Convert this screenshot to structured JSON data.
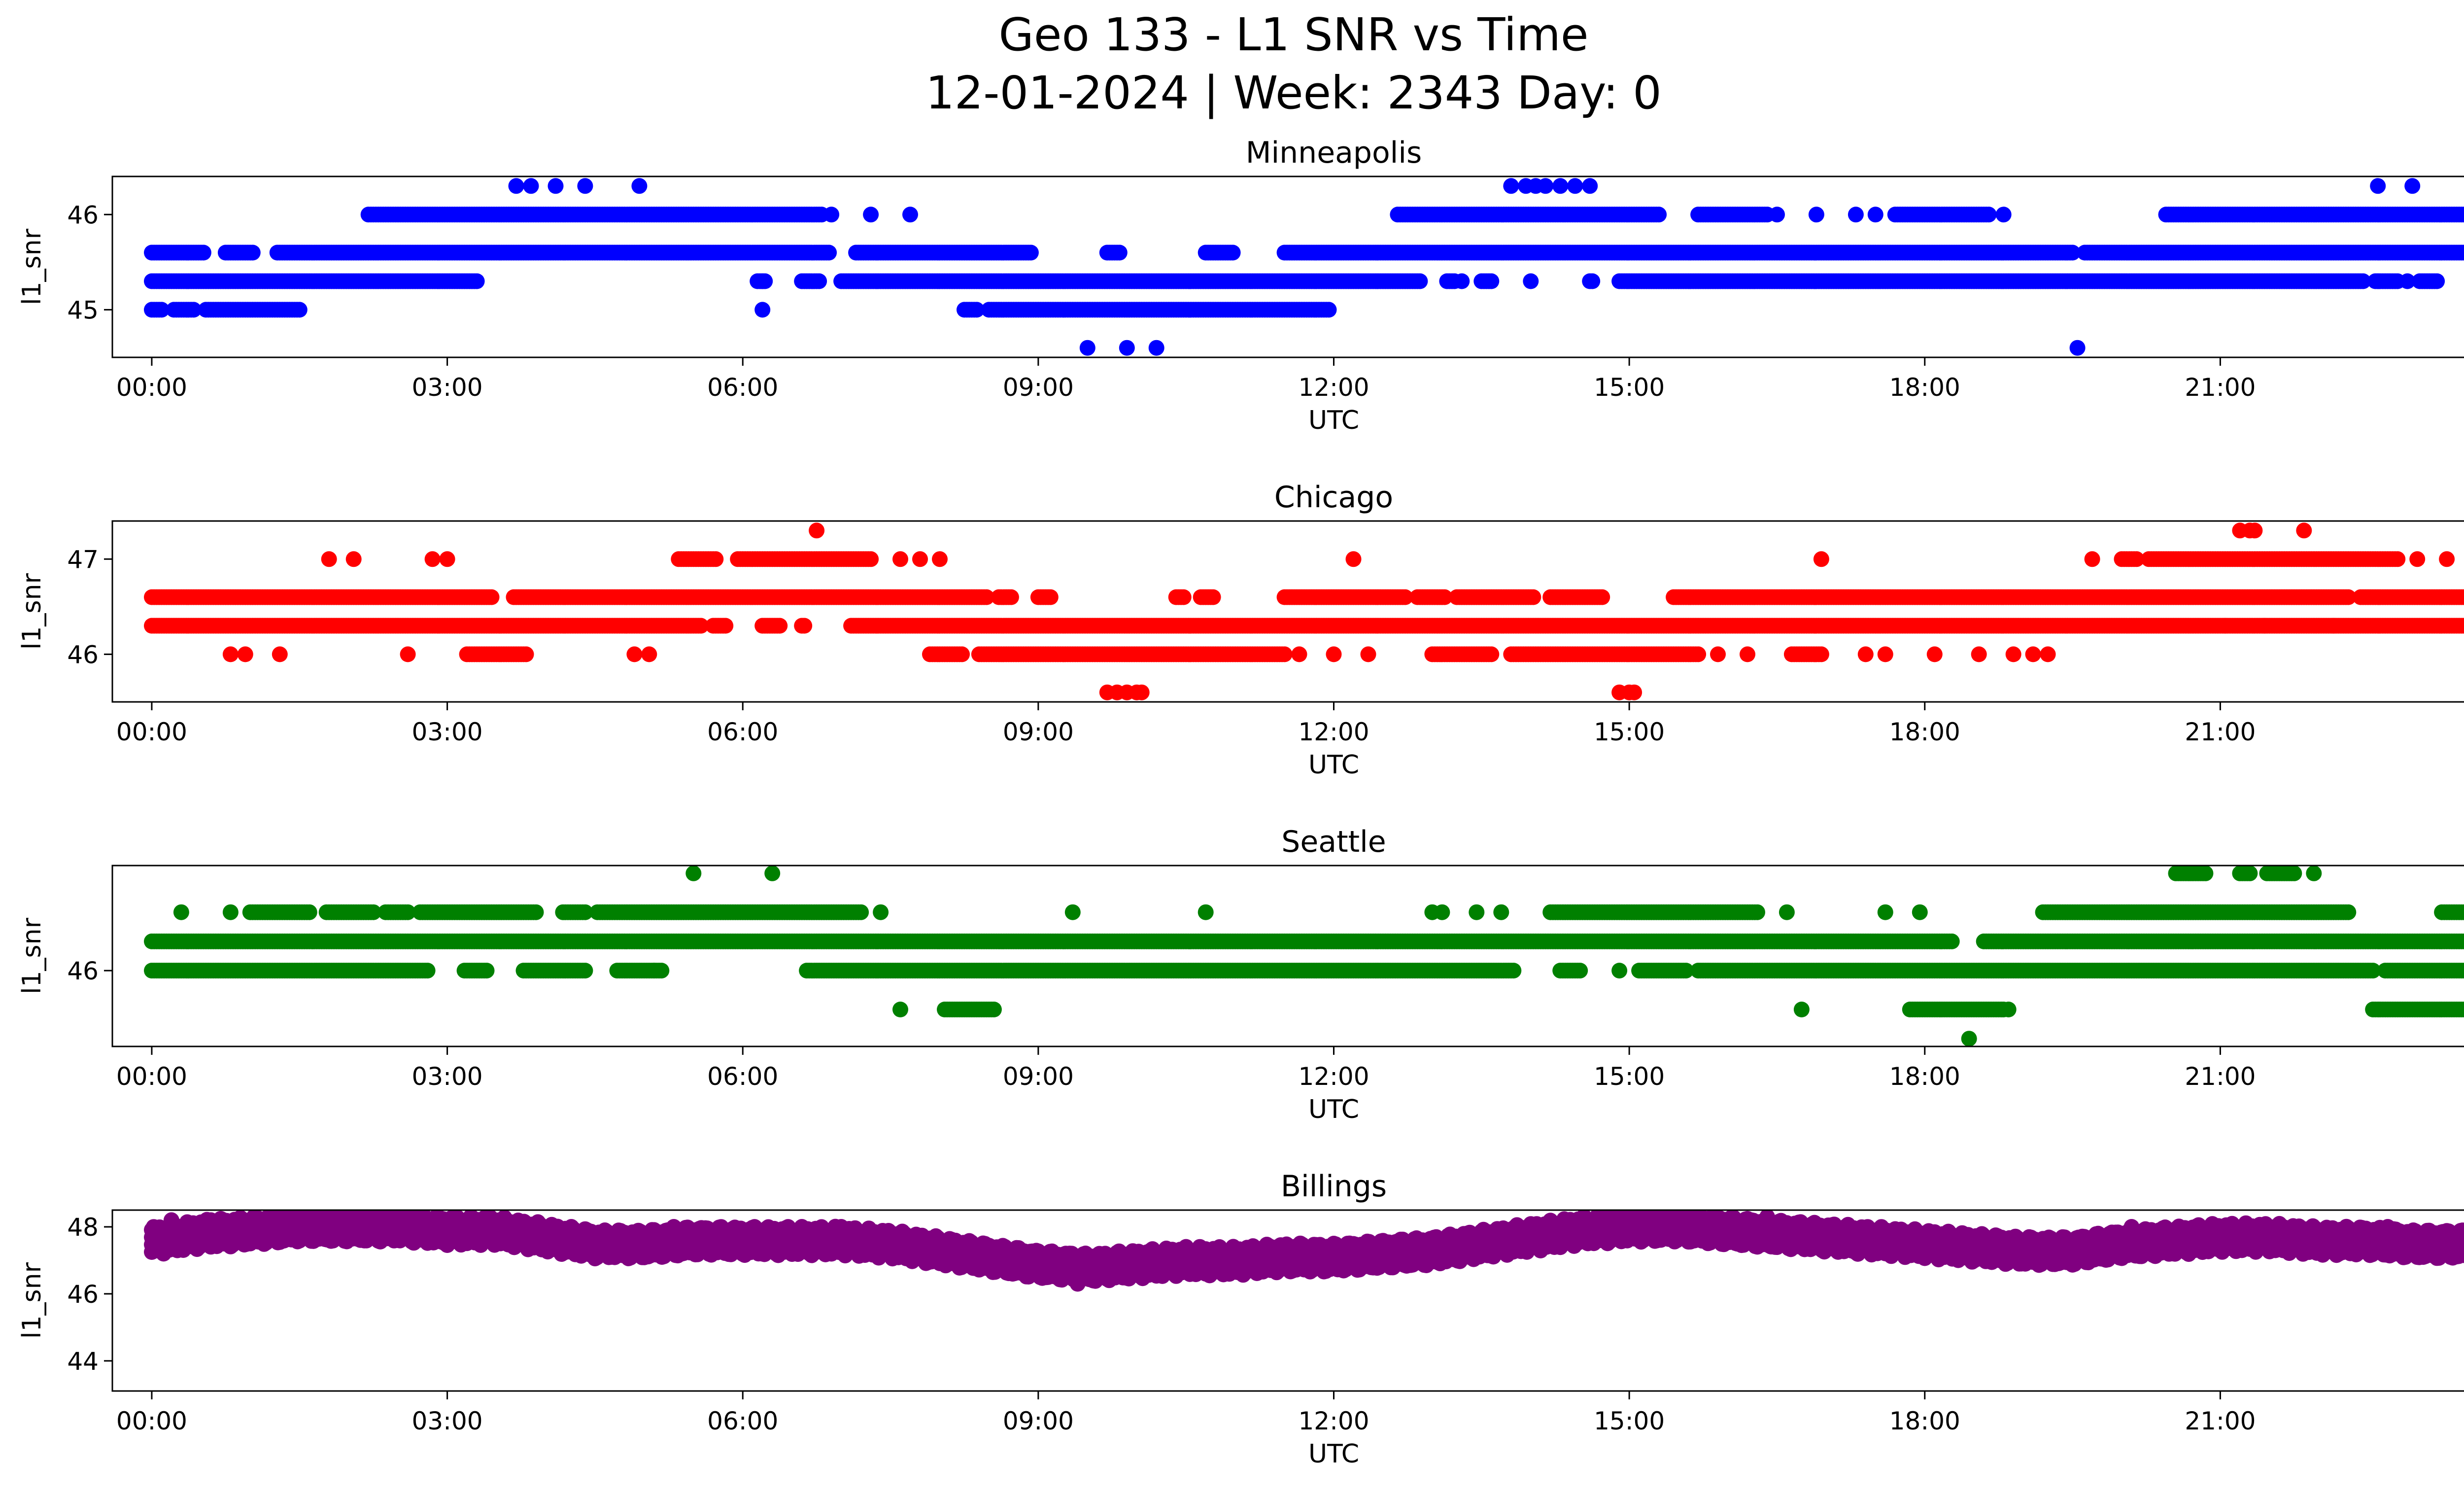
{
  "figure": {
    "title_line1": "Geo 133 - L1 SNR vs Time",
    "title_line2": "12-01-2024 | Week: 2343 Day: 0"
  },
  "chart_data": [
    {
      "type": "scatter",
      "title": "Minneapolis",
      "xlabel": "UTC",
      "ylabel": "l1_snr",
      "color": "#0000ff",
      "xlim": [
        -0.4,
        24.4
      ],
      "ylim": [
        44.5,
        46.4
      ],
      "x_ticks": [
        0,
        3,
        6,
        9,
        12,
        15,
        18,
        21,
        24
      ],
      "x_tick_labels": [
        "00:00",
        "03:00",
        "06:00",
        "09:00",
        "12:00",
        "15:00",
        "18:00",
        "21:00",
        "00:00"
      ],
      "y_ticks": [
        45,
        46
      ],
      "y_tick_labels": [
        "45",
        "46"
      ],
      "dense_segments": [
        {
          "y": 45.6,
          "x_start": 0.0,
          "x_end": 24.0,
          "gaps": [
            [
              0.55,
              0.75
            ],
            [
              1.05,
              1.25
            ],
            [
              6.9,
              7.15
            ],
            [
              8.95,
              9.7
            ],
            [
              9.85,
              10.7
            ],
            [
              11.0,
              11.5
            ],
            [
              19.5,
              19.6
            ]
          ]
        },
        {
          "y": 45.3,
          "x_start": 0.0,
          "x_end": 24.0,
          "gaps": [
            [
              3.3,
              6.15
            ],
            [
              6.25,
              6.6
            ],
            [
              6.8,
              7.0
            ],
            [
              12.9,
              13.15
            ],
            [
              13.25,
              13.5
            ],
            [
              13.6,
              14.6
            ],
            [
              14.65,
              14.9
            ],
            [
              22.45,
              22.55
            ],
            [
              22.8,
              23.0
            ],
            [
              23.2,
              24.0
            ]
          ]
        },
        {
          "y": 46.0,
          "x_start": 2.2,
          "x_end": 6.8,
          "gaps": []
        },
        {
          "y": 46.0,
          "x_start": 12.65,
          "x_end": 15.3,
          "gaps": []
        },
        {
          "y": 46.0,
          "x_start": 20.45,
          "x_end": 24.0,
          "gaps": []
        },
        {
          "y": 46.0,
          "x_start": 15.7,
          "x_end": 16.4,
          "gaps": []
        },
        {
          "y": 46.0,
          "x_start": 17.7,
          "x_end": 18.65,
          "gaps": []
        },
        {
          "y": 45.0,
          "x_start": 0.0,
          "x_end": 1.5,
          "gaps": [
            [
              0.1,
              0.2
            ],
            [
              0.45,
              0.55
            ]
          ]
        },
        {
          "y": 45.0,
          "x_start": 8.25,
          "x_end": 11.95,
          "gaps": [
            [
              8.4,
              8.5
            ]
          ]
        }
      ],
      "sparse_points": [
        [
          3.7,
          46.3
        ],
        [
          3.85,
          46.3
        ],
        [
          4.1,
          46.3
        ],
        [
          4.4,
          46.3
        ],
        [
          4.95,
          46.3
        ],
        [
          6.9,
          46.0
        ],
        [
          7.3,
          46.0
        ],
        [
          7.7,
          46.0
        ],
        [
          9.5,
          44.6
        ],
        [
          9.9,
          44.6
        ],
        [
          10.2,
          44.6
        ],
        [
          6.2,
          45.0
        ],
        [
          6.2,
          45.3
        ],
        [
          13.8,
          46.3
        ],
        [
          13.95,
          46.3
        ],
        [
          14.05,
          46.3
        ],
        [
          14.15,
          46.3
        ],
        [
          14.3,
          46.3
        ],
        [
          14.45,
          46.3
        ],
        [
          14.6,
          46.3
        ],
        [
          16.5,
          46.0
        ],
        [
          16.9,
          46.0
        ],
        [
          17.3,
          46.0
        ],
        [
          17.5,
          46.0
        ],
        [
          18.8,
          46.0
        ],
        [
          19.55,
          44.6
        ],
        [
          22.6,
          46.3
        ],
        [
          22.95,
          46.3
        ],
        [
          23.95,
          46.3
        ],
        [
          13.3,
          45.3
        ],
        [
          13.6,
          45.3
        ],
        [
          14.0,
          45.3
        ],
        [
          22.6,
          45.3
        ],
        [
          22.9,
          45.3
        ]
      ]
    },
    {
      "type": "scatter",
      "title": "Chicago",
      "xlabel": "UTC",
      "ylabel": "l1_snr",
      "color": "#ff0000",
      "xlim": [
        -0.4,
        24.4
      ],
      "ylim": [
        45.5,
        47.4
      ],
      "x_ticks": [
        0,
        3,
        6,
        9,
        12,
        15,
        18,
        21,
        24
      ],
      "x_tick_labels": [
        "00:00",
        "03:00",
        "06:00",
        "09:00",
        "12:00",
        "15:00",
        "18:00",
        "21:00",
        "00:00"
      ],
      "y_ticks": [
        46,
        47
      ],
      "y_tick_labels": [
        "46",
        "47"
      ],
      "dense_segments": [
        {
          "y": 46.3,
          "x_start": 0.0,
          "x_end": 24.0,
          "gaps": [
            [
              5.6,
              5.7
            ],
            [
              5.85,
              6.2
            ],
            [
              6.4,
              6.6
            ],
            [
              6.65,
              7.1
            ]
          ]
        },
        {
          "y": 46.6,
          "x_start": 0.0,
          "x_end": 24.0,
          "gaps": [
            [
              3.45,
              3.65
            ],
            [
              8.5,
              8.6
            ],
            [
              8.75,
              9.0
            ],
            [
              9.15,
              10.4
            ],
            [
              10.5,
              10.65
            ],
            [
              10.8,
              11.5
            ],
            [
              12.75,
              12.85
            ],
            [
              13.15,
              13.25
            ],
            [
              14.05,
              14.2
            ],
            [
              14.75,
              15.45
            ],
            [
              22.3,
              22.4
            ]
          ]
        },
        {
          "y": 46.0,
          "x_start": 7.9,
          "x_end": 11.5,
          "gaps": [
            [
              8.25,
              8.4
            ]
          ]
        },
        {
          "y": 46.0,
          "x_start": 13.0,
          "x_end": 13.6,
          "gaps": []
        },
        {
          "y": 46.0,
          "x_start": 13.8,
          "x_end": 15.7,
          "gaps": []
        },
        {
          "y": 47.0,
          "x_start": 5.35,
          "x_end": 7.3,
          "gaps": [
            [
              5.75,
              5.95
            ]
          ]
        },
        {
          "y": 47.0,
          "x_start": 20.0,
          "x_end": 22.8,
          "gaps": [
            [
              20.15,
              20.25
            ]
          ]
        },
        {
          "y": 46.0,
          "x_start": 3.2,
          "x_end": 3.8,
          "gaps": []
        },
        {
          "y": 46.0,
          "x_start": 16.65,
          "x_end": 16.95,
          "gaps": []
        }
      ],
      "sparse_points": [
        [
          0.8,
          46.0
        ],
        [
          0.95,
          46.0
        ],
        [
          1.3,
          46.0
        ],
        [
          2.6,
          46.0
        ],
        [
          4.9,
          46.0
        ],
        [
          5.05,
          46.0
        ],
        [
          1.8,
          47.0
        ],
        [
          2.05,
          47.0
        ],
        [
          2.85,
          47.0
        ],
        [
          3.0,
          47.0
        ],
        [
          6.75,
          47.3
        ],
        [
          7.6,
          47.0
        ],
        [
          7.8,
          47.0
        ],
        [
          8.0,
          47.0
        ],
        [
          9.7,
          45.6
        ],
        [
          9.8,
          45.6
        ],
        [
          9.9,
          45.6
        ],
        [
          10.0,
          45.6
        ],
        [
          10.05,
          45.6
        ],
        [
          12.2,
          47.0
        ],
        [
          11.65,
          46.0
        ],
        [
          12.0,
          46.0
        ],
        [
          12.35,
          46.0
        ],
        [
          14.9,
          45.6
        ],
        [
          15.0,
          45.6
        ],
        [
          15.05,
          45.6
        ],
        [
          15.9,
          46.0
        ],
        [
          16.2,
          46.0
        ],
        [
          16.95,
          47.0
        ],
        [
          17.4,
          46.0
        ],
        [
          17.6,
          46.0
        ],
        [
          18.1,
          46.0
        ],
        [
          18.55,
          46.0
        ],
        [
          18.9,
          46.0
        ],
        [
          19.1,
          46.0
        ],
        [
          19.25,
          46.0
        ],
        [
          19.7,
          47.0
        ],
        [
          21.2,
          47.3
        ],
        [
          21.3,
          47.3
        ],
        [
          21.35,
          47.3
        ],
        [
          21.85,
          47.3
        ],
        [
          23.0,
          47.0
        ],
        [
          23.3,
          47.0
        ],
        [
          23.6,
          47.0
        ],
        [
          21.05,
          46.3
        ],
        [
          21.45,
          46.3
        ],
        [
          22.15,
          46.3
        ]
      ]
    },
    {
      "type": "scatter",
      "title": "Seattle",
      "xlabel": "UTC",
      "ylabel": "l1_snr",
      "color": "#008000",
      "xlim": [
        -0.4,
        24.4
      ],
      "ylim": [
        45.22,
        47.08
      ],
      "x_ticks": [
        0,
        3,
        6,
        9,
        12,
        15,
        18,
        21,
        24
      ],
      "x_tick_labels": [
        "00:00",
        "03:00",
        "06:00",
        "09:00",
        "12:00",
        "15:00",
        "18:00",
        "21:00",
        "00:00"
      ],
      "y_ticks": [
        46
      ],
      "y_tick_labels": [
        "46"
      ],
      "dense_segments": [
        {
          "y": 46.3,
          "x_start": 0.0,
          "x_end": 24.0,
          "gaps": [
            [
              18.3,
              18.6
            ]
          ]
        },
        {
          "y": 46.0,
          "x_start": 0.0,
          "x_end": 24.0,
          "gaps": [
            [
              2.8,
              3.15
            ],
            [
              3.4,
              3.75
            ],
            [
              4.4,
              4.7
            ],
            [
              5.2,
              6.65
            ],
            [
              13.85,
              14.3
            ],
            [
              14.5,
              15.1
            ],
            [
              15.6,
              15.7
            ],
            [
              22.55,
              22.65
            ]
          ]
        },
        {
          "y": 46.6,
          "x_start": 1.0,
          "x_end": 7.2,
          "gaps": [
            [
              1.6,
              1.75
            ],
            [
              2.25,
              2.35
            ],
            [
              2.6,
              2.7
            ],
            [
              3.9,
              4.15
            ],
            [
              4.4,
              4.5
            ]
          ]
        },
        {
          "y": 46.6,
          "x_start": 14.2,
          "x_end": 16.3,
          "gaps": []
        },
        {
          "y": 46.6,
          "x_start": 19.2,
          "x_end": 22.3,
          "gaps": []
        },
        {
          "y": 46.6,
          "x_start": 23.25,
          "x_end": 24.0,
          "gaps": []
        },
        {
          "y": 45.6,
          "x_start": 17.85,
          "x_end": 18.8,
          "gaps": []
        },
        {
          "y": 45.6,
          "x_start": 22.55,
          "x_end": 23.5,
          "gaps": []
        },
        {
          "y": 45.6,
          "x_start": 8.05,
          "x_end": 8.55,
          "gaps": []
        },
        {
          "y": 47.0,
          "x_start": 20.55,
          "x_end": 20.85,
          "gaps": []
        },
        {
          "y": 47.0,
          "x_start": 21.2,
          "x_end": 21.75,
          "gaps": [
            [
              21.3,
              21.45
            ]
          ]
        }
      ],
      "sparse_points": [
        [
          0.3,
          46.6
        ],
        [
          0.8,
          46.6
        ],
        [
          5.5,
          47.0
        ],
        [
          6.3,
          47.0
        ],
        [
          7.4,
          46.6
        ],
        [
          7.6,
          45.6
        ],
        [
          9.35,
          46.6
        ],
        [
          10.7,
          46.6
        ],
        [
          13.0,
          46.6
        ],
        [
          13.1,
          46.6
        ],
        [
          13.45,
          46.6
        ],
        [
          13.7,
          46.6
        ],
        [
          16.6,
          46.6
        ],
        [
          16.75,
          45.6
        ],
        [
          17.6,
          46.6
        ],
        [
          17.95,
          46.6
        ],
        [
          18.45,
          45.3
        ],
        [
          18.85,
          45.6
        ],
        [
          23.9,
          45.6
        ],
        [
          21.95,
          47.0
        ],
        [
          5.1,
          46.0
        ],
        [
          14.5,
          46.0
        ],
        [
          14.9,
          46.0
        ]
      ]
    },
    {
      "type": "scatter",
      "title": "Billings",
      "xlabel": "UTC",
      "ylabel": "l1_snr",
      "color": "#800080",
      "xlim": [
        -0.4,
        24.4
      ],
      "ylim": [
        43.1,
        48.5
      ],
      "x_ticks": [
        0,
        3,
        6,
        9,
        12,
        15,
        18,
        21,
        24
      ],
      "x_tick_labels": [
        "00:00",
        "03:00",
        "06:00",
        "09:00",
        "12:00",
        "15:00",
        "18:00",
        "21:00",
        "00:00"
      ],
      "y_ticks": [
        44,
        46,
        48
      ],
      "y_tick_labels": [
        "44",
        "46",
        "48"
      ],
      "profile": [
        [
          0.0,
          47.6
        ],
        [
          0.5,
          47.8
        ],
        [
          1.0,
          47.9
        ],
        [
          1.5,
          48.0
        ],
        [
          2.0,
          48.0
        ],
        [
          2.5,
          48.0
        ],
        [
          3.0,
          47.9
        ],
        [
          3.5,
          47.9
        ],
        [
          4.0,
          47.7
        ],
        [
          4.5,
          47.5
        ],
        [
          5.0,
          47.5
        ],
        [
          5.5,
          47.6
        ],
        [
          6.0,
          47.6
        ],
        [
          6.5,
          47.6
        ],
        [
          7.0,
          47.6
        ],
        [
          7.5,
          47.5
        ],
        [
          8.0,
          47.3
        ],
        [
          8.5,
          47.1
        ],
        [
          9.0,
          46.9
        ],
        [
          9.5,
          46.8
        ],
        [
          10.0,
          46.9
        ],
        [
          10.5,
          47.0
        ],
        [
          11.0,
          47.0
        ],
        [
          11.5,
          47.1
        ],
        [
          12.0,
          47.1
        ],
        [
          12.5,
          47.2
        ],
        [
          13.0,
          47.3
        ],
        [
          13.5,
          47.5
        ],
        [
          14.0,
          47.7
        ],
        [
          14.5,
          47.9
        ],
        [
          15.0,
          48.0
        ],
        [
          15.5,
          48.0
        ],
        [
          16.0,
          47.9
        ],
        [
          16.5,
          47.8
        ],
        [
          17.0,
          47.7
        ],
        [
          17.5,
          47.6
        ],
        [
          18.0,
          47.5
        ],
        [
          18.5,
          47.4
        ],
        [
          19.0,
          47.3
        ],
        [
          19.5,
          47.3
        ],
        [
          20.0,
          47.5
        ],
        [
          20.5,
          47.6
        ],
        [
          21.0,
          47.7
        ],
        [
          21.5,
          47.7
        ],
        [
          22.0,
          47.6
        ],
        [
          22.5,
          47.6
        ],
        [
          23.0,
          47.5
        ],
        [
          23.5,
          47.5
        ],
        [
          24.0,
          47.5
        ]
      ],
      "band_half_width": 0.35,
      "sparse_points": [
        [
          23.6,
          47.0
        ],
        [
          23.65,
          46.6
        ],
        [
          23.65,
          46.3
        ],
        [
          23.68,
          46.0
        ],
        [
          23.6,
          43.3
        ],
        [
          9.4,
          46.3
        ],
        [
          10.7,
          46.6
        ],
        [
          8.9,
          46.6
        ],
        [
          12.1,
          46.9
        ],
        [
          0.2,
          48.2
        ],
        [
          0.6,
          48.2
        ],
        [
          2.3,
          48.3
        ],
        [
          3.3,
          48.2
        ],
        [
          14.8,
          48.3
        ],
        [
          16.4,
          48.3
        ],
        [
          7.0,
          48.0
        ],
        [
          5.3,
          48.0
        ],
        [
          20.1,
          48.0
        ],
        [
          22.7,
          48.0
        ]
      ]
    }
  ]
}
